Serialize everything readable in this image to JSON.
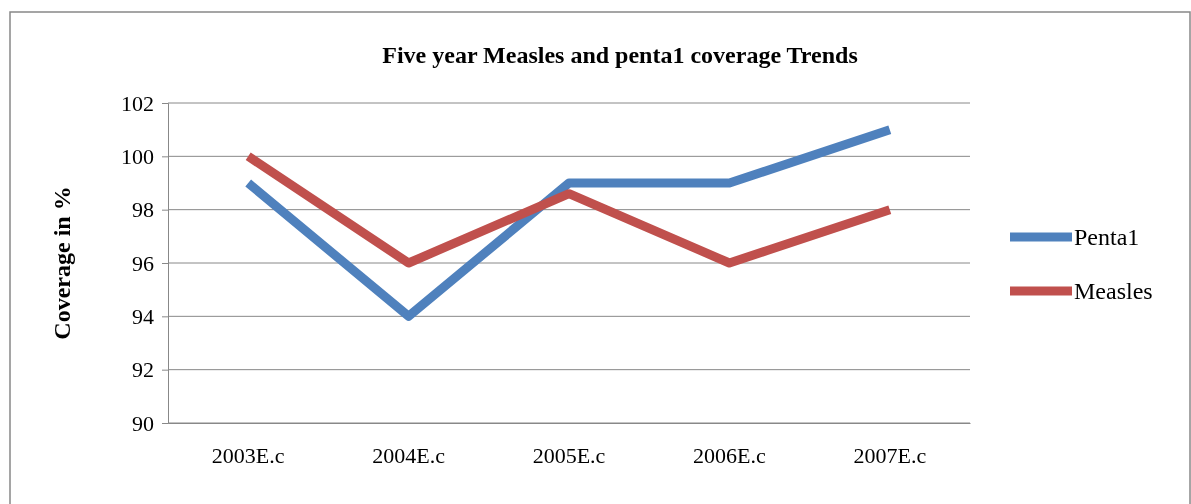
{
  "chart_data": {
    "type": "line",
    "title": "Five year Measles and penta1 coverage Trends",
    "ylabel": "Coverage in %",
    "categories": [
      "2003E.c",
      "2004E.c",
      "2005E.c",
      "2006E.c",
      "2007E.c"
    ],
    "series": [
      {
        "name": "Penta1",
        "color": "#4f81bd",
        "values": [
          99,
          94,
          99,
          99,
          101
        ]
      },
      {
        "name": "Measles",
        "color": "#c0504d",
        "values": [
          100,
          96,
          98.6,
          96,
          98
        ]
      }
    ],
    "ylim": [
      90,
      102
    ],
    "yticks": [
      90,
      92,
      94,
      96,
      98,
      100,
      102
    ],
    "grid": "y",
    "legend": "right",
    "marker": "none",
    "line_style": "solid"
  }
}
